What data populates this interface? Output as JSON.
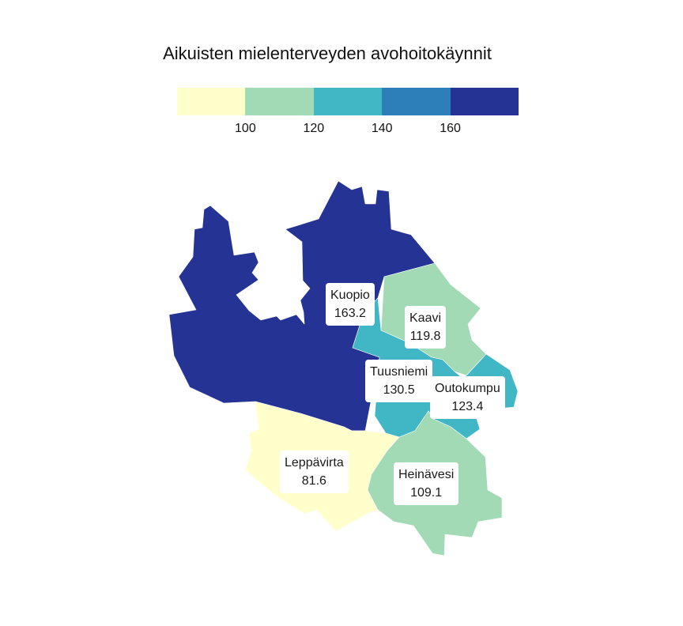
{
  "title": "Aikuisten mielenterveyden avohoitokäynnit",
  "legend": {
    "colors": [
      "#ffffcc",
      "#a1dab4",
      "#41b6c4",
      "#2c7fb8",
      "#253494"
    ],
    "ticks": [
      "100",
      "120",
      "140",
      "160"
    ]
  },
  "chart_data": {
    "type": "choropleth",
    "title": "Aikuisten mielenterveyden avohoitokäynnit",
    "bins": [
      {
        "max": 100,
        "color": "#ffffcc"
      },
      {
        "min": 100,
        "max": 120,
        "color": "#a1dab4"
      },
      {
        "min": 120,
        "max": 140,
        "color": "#41b6c4"
      },
      {
        "min": 140,
        "max": 160,
        "color": "#2c7fb8"
      },
      {
        "min": 160,
        "color": "#253494"
      }
    ],
    "regions": [
      {
        "name": "Kuopio",
        "value": "163.2"
      },
      {
        "name": "Kaavi",
        "value": "119.8"
      },
      {
        "name": "Tuusniemi",
        "value": "130.5"
      },
      {
        "name": "Outokumpu",
        "value": "123.4"
      },
      {
        "name": "Leppävirta",
        "value": "81.6"
      },
      {
        "name": "Heinävesi",
        "value": "109.1"
      }
    ]
  }
}
